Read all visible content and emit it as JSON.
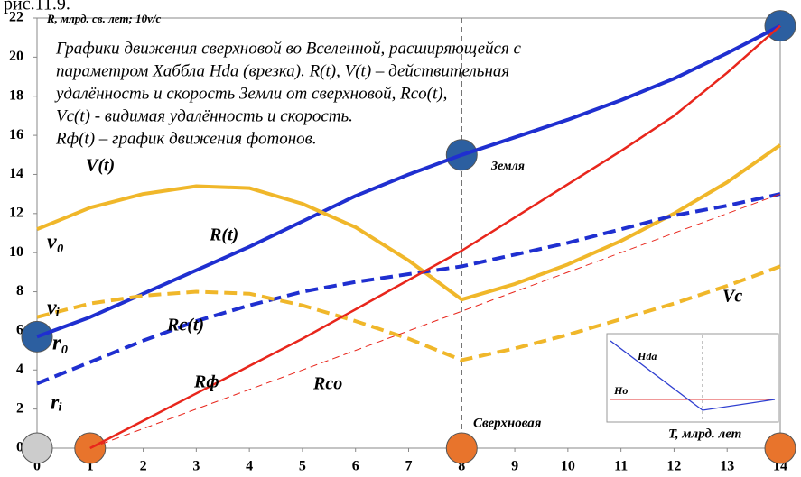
{
  "chart_data": {
    "type": "line",
    "title": "рис.11.9.",
    "ylabel": "R, млрд. св. лет; 10v/c",
    "xlabel": "T, млрд. лет",
    "annotation": [
      "Графики движения сверхновой во Вселенной, расширяющейся с",
      "параметром Хаббла Hda (врезка). R(t), V(t) – действительная",
      "удалённость и скорость Земли от сверхновой, Rco(t),",
      "Vc(t) - видимая удалённость и скорость.",
      "Rф(t) – график движения фотонов."
    ],
    "point_labels": [
      "Земля",
      "Сверхновая",
      "v₀",
      "vᵢ",
      "r₀",
      "rᵢ"
    ],
    "inset_labels": [
      "Hda",
      "Ho"
    ],
    "x": [
      0,
      1,
      2,
      3,
      4,
      5,
      6,
      7,
      8,
      9,
      10,
      11,
      12,
      13,
      14
    ],
    "series": [
      {
        "name": "R(t)",
        "color": "#1f2fd0",
        "dashed": false,
        "width": 4,
        "values": [
          5.7,
          6.7,
          7.9,
          9.1,
          10.3,
          11.6,
          12.9,
          14.0,
          15.0,
          15.9,
          16.8,
          17.8,
          18.9,
          20.2,
          21.6
        ]
      },
      {
        "name": "V(t)",
        "color": "#f0b72a",
        "dashed": false,
        "width": 4,
        "values": [
          11.2,
          12.3,
          13.0,
          13.4,
          13.3,
          12.5,
          11.3,
          9.6,
          7.6,
          8.4,
          9.4,
          10.6,
          12.0,
          13.6,
          15.5
        ]
      },
      {
        "name": "Rc(t)",
        "color": "#1f2fd0",
        "dashed": true,
        "width": 4,
        "values": [
          3.3,
          4.4,
          5.5,
          6.5,
          7.3,
          8.0,
          8.5,
          8.9,
          9.3,
          9.9,
          10.5,
          11.2,
          11.9,
          12.4,
          13.0
        ]
      },
      {
        "name": "Vc",
        "color": "#f0b72a",
        "dashed": true,
        "width": 4,
        "values": [
          6.7,
          7.4,
          7.8,
          8.0,
          7.9,
          7.3,
          6.5,
          5.6,
          4.5,
          5.1,
          5.8,
          6.6,
          7.4,
          8.3,
          9.3
        ]
      },
      {
        "name": "Rф",
        "color": "#e8261c",
        "dashed": false,
        "width": 2.5,
        "values": [
          null,
          0,
          1.4,
          2.8,
          4.2,
          5.6,
          7.1,
          8.6,
          10.1,
          11.8,
          13.5,
          15.2,
          17.0,
          19.2,
          21.6
        ]
      },
      {
        "name": "Rco",
        "color": "#e8261c",
        "dashed": true,
        "width": 1,
        "values": [
          null,
          0,
          1,
          2,
          3,
          4,
          5,
          6,
          7,
          8,
          9,
          10,
          11,
          12,
          13
        ]
      }
    ],
    "xlim": [
      0,
      14
    ],
    "ylim": [
      0,
      22
    ],
    "xticks": [
      0,
      1,
      2,
      3,
      4,
      5,
      6,
      7,
      8,
      9,
      10,
      11,
      12,
      13,
      14
    ],
    "yticks": [
      0,
      2,
      4,
      6,
      8,
      10,
      12,
      14,
      16,
      18,
      20,
      22
    ]
  }
}
